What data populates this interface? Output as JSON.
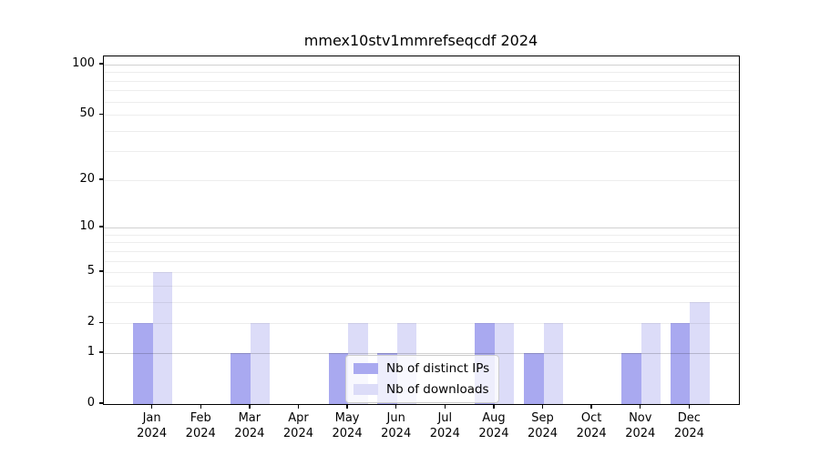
{
  "figure": {
    "title": "mmex10stv1mmrefseqcdf 2024"
  },
  "chart_data": {
    "type": "bar",
    "title": "mmex10stv1mmrefseqcdf 2024",
    "categories": [
      "Jan",
      "Feb",
      "Mar",
      "Apr",
      "May",
      "Jun",
      "Jul",
      "Aug",
      "Sep",
      "Oct",
      "Nov",
      "Dec"
    ],
    "x_tick_year_line": "2024",
    "series": [
      {
        "name": "Nb of distinct IPs",
        "color": "#a9a9f0",
        "values": [
          2,
          0,
          1,
          0,
          1,
          1,
          0,
          2,
          1,
          0,
          1,
          2
        ]
      },
      {
        "name": "Nb of downloads",
        "color": "#dcdcf8",
        "values": [
          5,
          0,
          2,
          0,
          2,
          2,
          0,
          2,
          2,
          0,
          2,
          3
        ]
      }
    ],
    "yscale": "log1p",
    "ylim": [
      0,
      113
    ],
    "y_tick_labels": [
      0,
      1,
      2,
      5,
      10,
      20,
      50,
      100
    ],
    "y_major_gridlines": [
      1,
      10,
      100
    ],
    "y_minor_gridlines": [
      2,
      3,
      4,
      5,
      6,
      7,
      8,
      9,
      20,
      30,
      40,
      50,
      60,
      70,
      80,
      90
    ],
    "grid": true,
    "legend_position": "lower center",
    "colors": {
      "major_grid": "#d1d1d1",
      "minor_grid": "#ededed",
      "spine": "#000000",
      "background": "#ffffff"
    }
  }
}
